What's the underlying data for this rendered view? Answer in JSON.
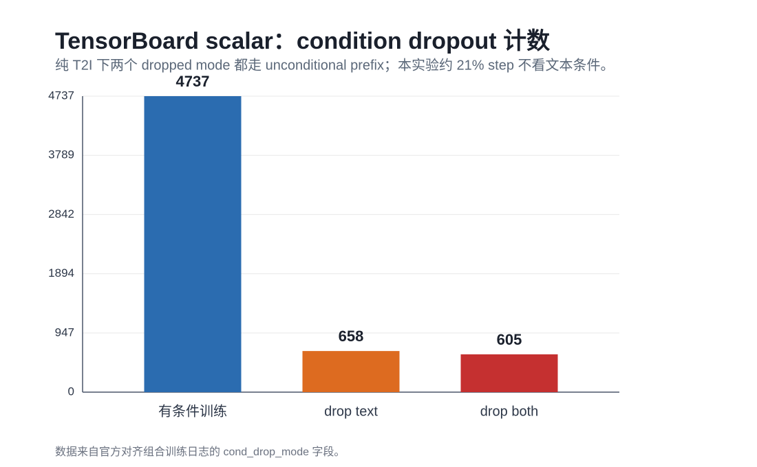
{
  "chart_data": {
    "type": "bar",
    "title": "TensorBoard scalar：condition dropout 计数",
    "subtitle": "纯 T2I 下两个 dropped mode 都走 unconditional prefix；本实验约 21% step 不看文本条件。",
    "categories": [
      "有条件训练",
      "drop text",
      "drop both"
    ],
    "values": [
      4737,
      658,
      605
    ],
    "colors": [
      "#2b6cb0",
      "#dd6b20",
      "#c53030"
    ],
    "ylim": [
      0,
      4737
    ],
    "yticks": [
      0,
      947,
      1894,
      2842,
      3789,
      4737
    ],
    "grid": true,
    "footnote": "数据来自官方对齐组合训练日志的 cond_drop_mode 字段。"
  }
}
